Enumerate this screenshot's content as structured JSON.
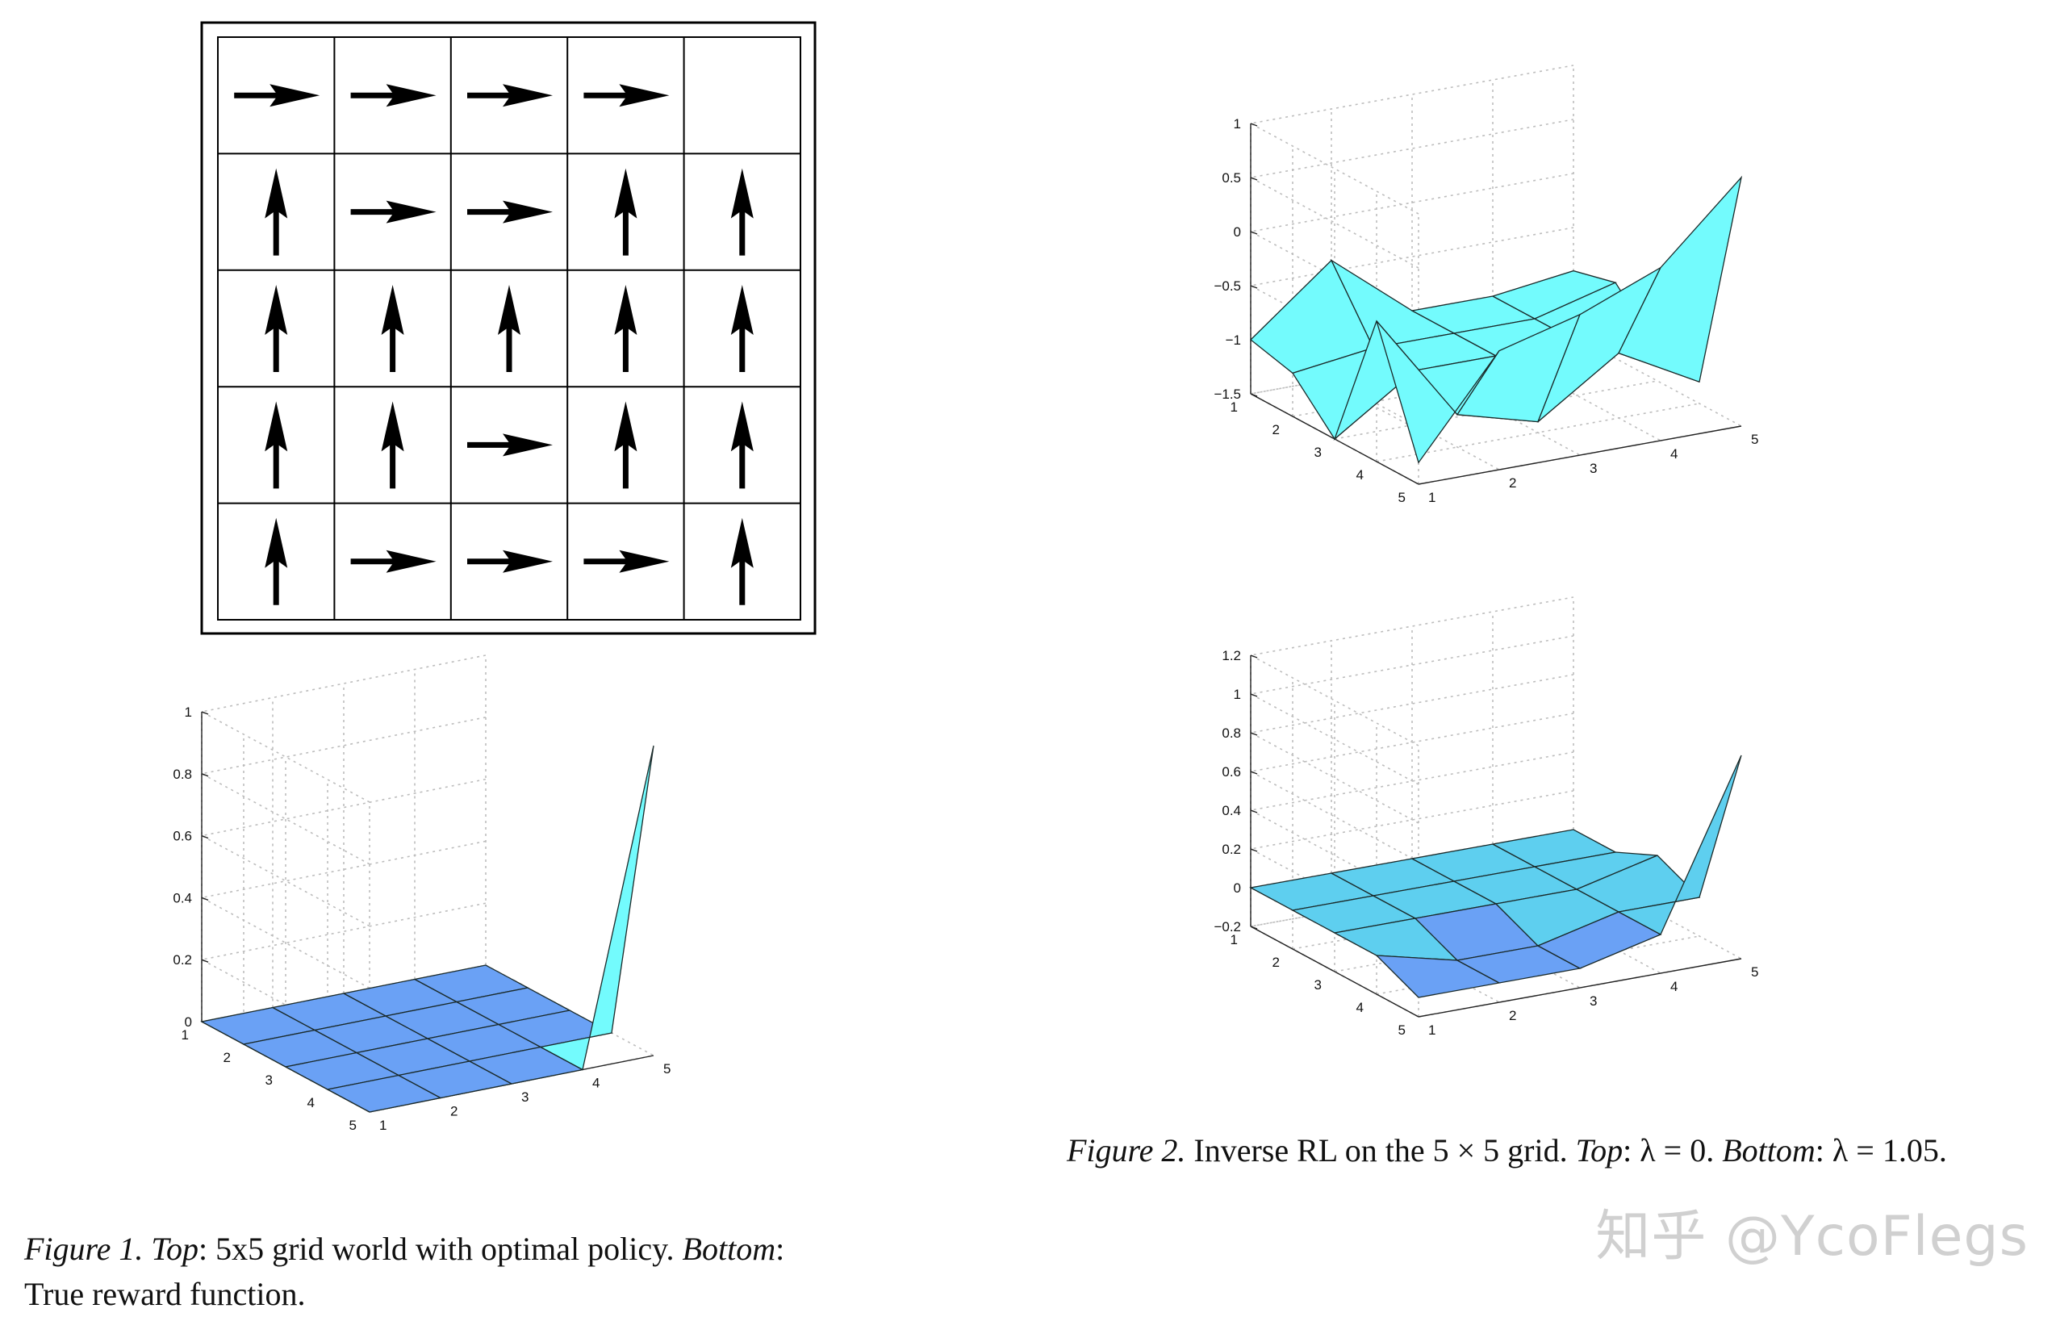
{
  "policy_grid": {
    "rows": 5,
    "cols": 5,
    "arrows": [
      [
        "right",
        "right",
        "right",
        "right",
        "none"
      ],
      [
        "up",
        "right",
        "right",
        "up",
        "up"
      ],
      [
        "up",
        "up",
        "up",
        "up",
        "up"
      ],
      [
        "up",
        "up",
        "right",
        "up",
        "up"
      ],
      [
        "up",
        "right",
        "right",
        "right",
        "up"
      ]
    ]
  },
  "captions": {
    "fig1_label": "Figure 1.",
    "fig1_top_label": "Top",
    "fig1_top_text": ": 5x5 grid world with optimal policy.",
    "fig1_bottom_label": "Bottom",
    "fig1_bottom_text": ":",
    "fig1_line2": "True reward function.",
    "fig2_label": "Figure 2.",
    "fig2_text": " Inverse RL on the 5 × 5 grid. ",
    "fig2_top_label": "Top",
    "fig2_top_text": ": λ = 0. ",
    "fig2_bottom_label": "Bottom",
    "fig2_bottom_text": ": λ = 1.05."
  },
  "watermark": "知乎 @YcoFlegs",
  "colors": {
    "surface": "#73fbfd",
    "surface_alt": "#66e6f7",
    "surface_dark": "#5ecfef",
    "dip": "#6aa1f5",
    "grid": "#bdbdbd"
  },
  "chart_data": [
    {
      "type": "surface",
      "z": [
        [
          0,
          0,
          0,
          0,
          0
        ],
        [
          0,
          0,
          0,
          0,
          0
        ],
        [
          0,
          0,
          0,
          0,
          0
        ],
        [
          0,
          0,
          0,
          0,
          0
        ],
        [
          0,
          0,
          0,
          0,
          1
        ]
      ],
      "x_ticks": [
        "1",
        "2",
        "3",
        "4",
        "5"
      ],
      "y_ticks": [
        "1",
        "2",
        "3",
        "4",
        "5"
      ],
      "z_ticks": [
        "0",
        "0.2",
        "0.4",
        "0.6",
        "0.8",
        "1"
      ],
      "zlim": [
        0,
        1
      ],
      "grid": true
    },
    {
      "type": "surface",
      "z": [
        [
          -1,
          -0.4,
          -1,
          -1,
          -0.9
        ],
        [
          -1.1,
          -1,
          -1,
          -1,
          -0.8
        ],
        [
          -1.5,
          -1,
          -1,
          -1,
          -1.2
        ],
        [
          -0.2,
          -1.2,
          -1.4,
          -0.9,
          -1.3
        ],
        [
          -1.3,
          -0.4,
          -0.2,
          0.1,
          0.8
        ]
      ],
      "x_ticks": [
        "1",
        "2",
        "3",
        "4",
        "5"
      ],
      "y_ticks": [
        "1",
        "2",
        "3",
        "4",
        "5"
      ],
      "z_ticks": [
        "-1.5",
        "-1",
        "-0.5",
        "0",
        "0.5",
        "1"
      ],
      "zlim": [
        -1.5,
        1
      ],
      "grid": true
    },
    {
      "type": "surface",
      "z": [
        [
          0,
          0,
          0,
          0,
          0
        ],
        [
          0,
          0,
          0,
          0,
          0
        ],
        [
          0,
          0,
          0,
          0,
          0.1
        ],
        [
          0,
          -0.1,
          -0.1,
          0,
          0
        ],
        [
          -0.1,
          -0.1,
          -0.1,
          0,
          0.85
        ]
      ],
      "x_ticks": [
        "1",
        "2",
        "3",
        "4",
        "5"
      ],
      "y_ticks": [
        "1",
        "2",
        "3",
        "4",
        "5"
      ],
      "z_ticks": [
        "-0.2",
        "0",
        "0.2",
        "0.4",
        "0.6",
        "0.8",
        "1",
        "1.2"
      ],
      "zlim": [
        -0.2,
        1.2
      ],
      "grid": true
    }
  ]
}
